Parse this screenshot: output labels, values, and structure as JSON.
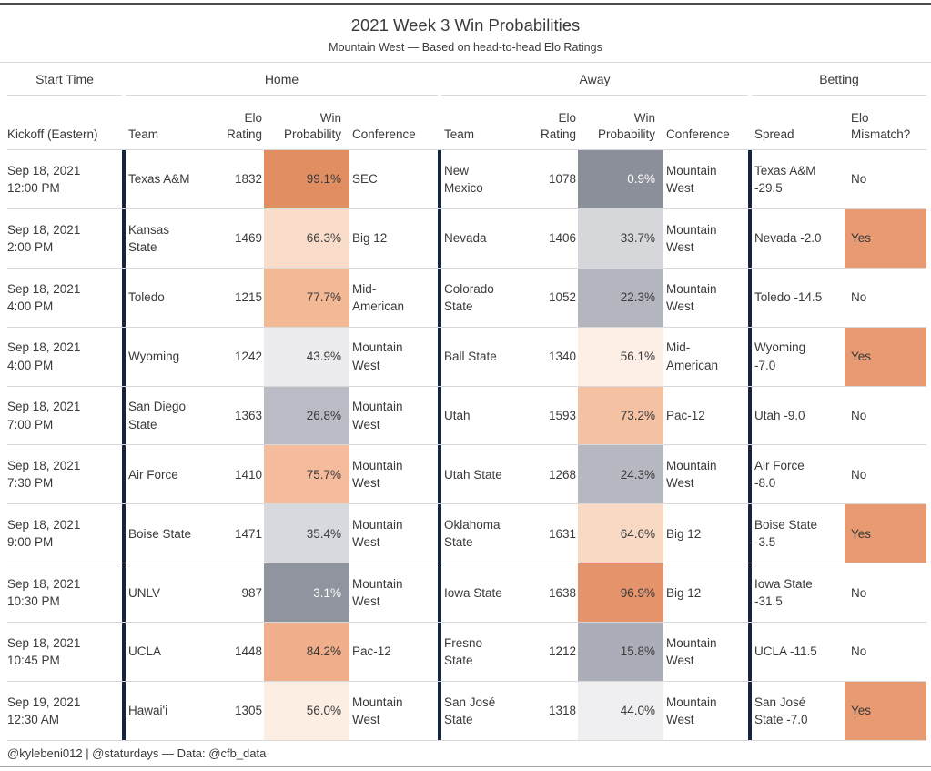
{
  "meta": {
    "title": "2021 Week 3 Win Probabilities",
    "subtitle": "Mountain West — Based on head-to-head Elo Ratings",
    "footer": "@kylebeni012 | @staturdays — Data: @cfb_data"
  },
  "groups": {
    "start_time": "Start Time",
    "home": "Home",
    "away": "Away",
    "betting": "Betting"
  },
  "columns": {
    "kickoff": "Kickoff (Eastern)",
    "team": "Team",
    "elo_rating": "Elo\nRating",
    "win_probability": "Win\nProbability",
    "conference": "Conference",
    "spread": "Spread",
    "elo_mismatch": "Elo\nMismatch?"
  },
  "colors": {
    "text": "#3a3a3a",
    "separator": "#162440",
    "row_line": "#d9d9d9",
    "top_rule": "#4d4d4d",
    "bottom_rule": "#a6a6a6",
    "yes_highlight": "#e89b72",
    "wp_light_text": "#ffffff"
  },
  "table": {
    "rows": [
      {
        "kickoff": "Sep 18, 2021\n12:00 PM",
        "home": {
          "team": "Texas A&M",
          "elo": "1832",
          "wp": "99.1%",
          "wp_bg": "#e18e63",
          "wp_fg": "#3a3a3a",
          "conf": "SEC"
        },
        "away": {
          "team": "New\nMexico",
          "elo": "1078",
          "wp": "0.9%",
          "wp_bg": "#8b8f9a",
          "wp_fg": "#ffffff",
          "conf": "Mountain\nWest"
        },
        "spread": "Texas A&M\n-29.5",
        "mismatch": "No",
        "mismatch_bg": null
      },
      {
        "kickoff": "Sep 18, 2021\n2:00 PM",
        "home": {
          "team": "Kansas\nState",
          "elo": "1469",
          "wp": "66.3%",
          "wp_bg": "#fadcca",
          "wp_fg": "#3a3a3a",
          "conf": "Big 12"
        },
        "away": {
          "team": "Nevada",
          "elo": "1406",
          "wp": "33.7%",
          "wp_bg": "#d6d7db",
          "wp_fg": "#3a3a3a",
          "conf": "Mountain\nWest"
        },
        "spread": "Nevada -2.0",
        "mismatch": "Yes",
        "mismatch_bg": "#e89b72"
      },
      {
        "kickoff": "Sep 18, 2021\n4:00 PM",
        "home": {
          "team": "Toledo",
          "elo": "1215",
          "wp": "77.7%",
          "wp_bg": "#f3b894",
          "wp_fg": "#3a3a3a",
          "conf": "Mid-\nAmerican"
        },
        "away": {
          "team": "Colorado\nState",
          "elo": "1052",
          "wp": "22.3%",
          "wp_bg": "#b3b6bf",
          "wp_fg": "#3a3a3a",
          "conf": "Mountain\nWest"
        },
        "spread": "Toledo -14.5",
        "mismatch": "No",
        "mismatch_bg": null
      },
      {
        "kickoff": "Sep 18, 2021\n4:00 PM",
        "home": {
          "team": "Wyoming",
          "elo": "1242",
          "wp": "43.9%",
          "wp_bg": "#ececee",
          "wp_fg": "#3a3a3a",
          "conf": "Mountain\nWest"
        },
        "away": {
          "team": "Ball State",
          "elo": "1340",
          "wp": "56.1%",
          "wp_bg": "#fdefe5",
          "wp_fg": "#3a3a3a",
          "conf": "Mid-\nAmerican"
        },
        "spread": "Wyoming\n-7.0",
        "mismatch": "Yes",
        "mismatch_bg": "#e89b72"
      },
      {
        "kickoff": "Sep 18, 2021\n7:00 PM",
        "home": {
          "team": "San Diego\nState",
          "elo": "1363",
          "wp": "26.8%",
          "wp_bg": "#b9bcc4",
          "wp_fg": "#3a3a3a",
          "conf": "Mountain\nWest"
        },
        "away": {
          "team": "Utah",
          "elo": "1593",
          "wp": "73.2%",
          "wp_bg": "#f5c1a3",
          "wp_fg": "#3a3a3a",
          "conf": "Pac-12"
        },
        "spread": "Utah -9.0",
        "mismatch": "No",
        "mismatch_bg": null
      },
      {
        "kickoff": "Sep 18, 2021\n7:30 PM",
        "home": {
          "team": "Air Force",
          "elo": "1410",
          "wp": "75.7%",
          "wp_bg": "#f4bc9c",
          "wp_fg": "#3a3a3a",
          "conf": "Mountain\nWest"
        },
        "away": {
          "team": "Utah State",
          "elo": "1268",
          "wp": "24.3%",
          "wp_bg": "#b6b9c1",
          "wp_fg": "#3a3a3a",
          "conf": "Mountain\nWest"
        },
        "spread": "Air Force\n-8.0",
        "mismatch": "No",
        "mismatch_bg": null
      },
      {
        "kickoff": "Sep 18, 2021\n9:00 PM",
        "home": {
          "team": "Boise State",
          "elo": "1471",
          "wp": "35.4%",
          "wp_bg": "#d8d9de",
          "wp_fg": "#3a3a3a",
          "conf": "Mountain\nWest"
        },
        "away": {
          "team": "Oklahoma\nState",
          "elo": "1631",
          "wp": "64.6%",
          "wp_bg": "#f9d9c4",
          "wp_fg": "#3a3a3a",
          "conf": "Big 12"
        },
        "spread": "Boise State\n-3.5",
        "mismatch": "Yes",
        "mismatch_bg": "#e89b72"
      },
      {
        "kickoff": "Sep 18, 2021\n10:30 PM",
        "home": {
          "team": "UNLV",
          "elo": "987",
          "wp": "3.1%",
          "wp_bg": "#90949f",
          "wp_fg": "#ffffff",
          "conf": "Mountain\nWest"
        },
        "away": {
          "team": "Iowa State",
          "elo": "1638",
          "wp": "96.9%",
          "wp_bg": "#e5936a",
          "wp_fg": "#3a3a3a",
          "conf": "Big 12"
        },
        "spread": "Iowa State\n-31.5",
        "mismatch": "No",
        "mismatch_bg": null
      },
      {
        "kickoff": "Sep 18, 2021\n10:45 PM",
        "home": {
          "team": "UCLA",
          "elo": "1448",
          "wp": "84.2%",
          "wp_bg": "#f1ae8b",
          "wp_fg": "#3a3a3a",
          "conf": "Pac-12"
        },
        "away": {
          "team": "Fresno\nState",
          "elo": "1212",
          "wp": "15.8%",
          "wp_bg": "#abaeb8",
          "wp_fg": "#3a3a3a",
          "conf": "Mountain\nWest"
        },
        "spread": "UCLA -11.5",
        "mismatch": "No",
        "mismatch_bg": null
      },
      {
        "kickoff": "Sep 19, 2021\n12:30 AM",
        "home": {
          "team": "Hawai'i",
          "elo": "1305",
          "wp": "56.0%",
          "wp_bg": "#fdeee3",
          "wp_fg": "#3a3a3a",
          "conf": "Mountain\nWest"
        },
        "away": {
          "team": "San José\nState",
          "elo": "1318",
          "wp": "44.0%",
          "wp_bg": "#efeff1",
          "wp_fg": "#3a3a3a",
          "conf": "Mountain\nWest"
        },
        "spread": "San José\nState -7.0",
        "mismatch": "Yes",
        "mismatch_bg": "#e89b72"
      }
    ]
  },
  "chart_data": {
    "type": "table",
    "title": "2021 Week 3 Win Probabilities",
    "subtitle": "Mountain West — Based on head-to-head Elo Ratings",
    "column_groups": [
      "Start Time",
      "Home",
      "Away",
      "Betting"
    ],
    "columns": [
      "Kickoff (Eastern)",
      "Home Team",
      "Home Elo Rating",
      "Home Win Probability %",
      "Home Conference",
      "Away Team",
      "Away Elo Rating",
      "Away Win Probability %",
      "Away Conference",
      "Spread",
      "Elo Mismatch?"
    ],
    "rows": [
      [
        "Sep 18, 2021 12:00 PM",
        "Texas A&M",
        1832,
        99.1,
        "SEC",
        "New Mexico",
        1078,
        0.9,
        "Mountain West",
        "Texas A&M -29.5",
        "No"
      ],
      [
        "Sep 18, 2021 2:00 PM",
        "Kansas State",
        1469,
        66.3,
        "Big 12",
        "Nevada",
        1406,
        33.7,
        "Mountain West",
        "Nevada -2.0",
        "Yes"
      ],
      [
        "Sep 18, 2021 4:00 PM",
        "Toledo",
        1215,
        77.7,
        "Mid-American",
        "Colorado State",
        1052,
        22.3,
        "Mountain West",
        "Toledo -14.5",
        "No"
      ],
      [
        "Sep 18, 2021 4:00 PM",
        "Wyoming",
        1242,
        43.9,
        "Mountain West",
        "Ball State",
        1340,
        56.1,
        "Mid-American",
        "Wyoming -7.0",
        "Yes"
      ],
      [
        "Sep 18, 2021 7:00 PM",
        "San Diego State",
        1363,
        26.8,
        "Mountain West",
        "Utah",
        1593,
        73.2,
        "Pac-12",
        "Utah -9.0",
        "No"
      ],
      [
        "Sep 18, 2021 7:30 PM",
        "Air Force",
        1410,
        75.7,
        "Mountain West",
        "Utah State",
        1268,
        24.3,
        "Mountain West",
        "Air Force -8.0",
        "No"
      ],
      [
        "Sep 18, 2021 9:00 PM",
        "Boise State",
        1471,
        35.4,
        "Mountain West",
        "Oklahoma State",
        1631,
        64.6,
        "Big 12",
        "Boise State -3.5",
        "Yes"
      ],
      [
        "Sep 18, 2021 10:30 PM",
        "UNLV",
        987,
        3.1,
        "Mountain West",
        "Iowa State",
        1638,
        96.9,
        "Big 12",
        "Iowa State -31.5",
        "No"
      ],
      [
        "Sep 18, 2021 10:45 PM",
        "UCLA",
        1448,
        84.2,
        "Pac-12",
        "Fresno State",
        1212,
        15.8,
        "Mountain West",
        "UCLA -11.5",
        "No"
      ],
      [
        "Sep 19, 2021 12:30 AM",
        "Hawai'i",
        1305,
        56.0,
        "Mountain West",
        "San José State",
        1318,
        44.0,
        "Mountain West",
        "San José State -7.0",
        "Yes"
      ]
    ],
    "style_notes": {
      "win_probability_scale": "diverging gray (#8b8f9a at 0%) through white (50%) to orange (#e18e63 at 100%)",
      "mismatch_yes_highlight": "#e89b72",
      "legend_position": "none",
      "grid": "horizontal row rules only, navy vertical section separators"
    }
  }
}
